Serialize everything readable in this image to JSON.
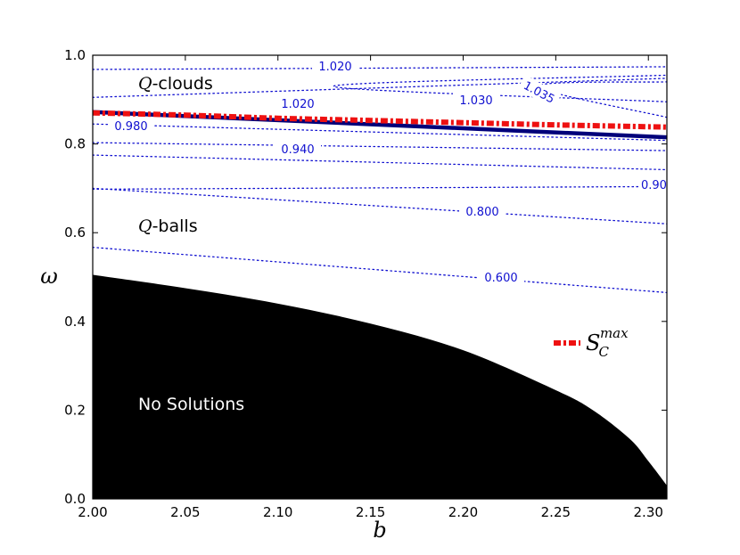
{
  "chart_data": {
    "type": "line",
    "title": "",
    "xlabel": "b",
    "ylabel": "ω",
    "xlim": [
      2.0,
      2.31
    ],
    "ylim": [
      0.0,
      1.0
    ],
    "x_ticks": [
      2.0,
      2.05,
      2.1,
      2.15,
      2.2,
      2.25,
      2.3
    ],
    "x_tick_labels": [
      "2.00",
      "2.05",
      "2.10",
      "2.15",
      "2.20",
      "2.25",
      "2.30"
    ],
    "y_ticks": [
      0.0,
      0.2,
      0.4,
      0.6,
      0.8,
      1.0
    ],
    "y_tick_labels": [
      "0.0",
      "0.2",
      "0.4",
      "0.6",
      "0.8",
      "1.0"
    ],
    "grid": false,
    "no_solution_boundary": {
      "x": [
        2.0,
        2.05,
        2.1,
        2.15,
        2.2,
        2.25,
        2.27,
        2.29,
        2.3,
        2.31
      ],
      "y": [
        0.505,
        0.475,
        0.44,
        0.395,
        0.335,
        0.245,
        0.2,
        0.135,
        0.085,
        0.03
      ]
    },
    "region_fill_color": "#000000",
    "boundary_curve": {
      "x": [
        2.0,
        2.31
      ],
      "y": [
        0.872,
        0.815
      ],
      "color": "#00007a"
    },
    "series": [
      {
        "name": "S_C^max",
        "x": [
          2.0,
          2.05,
          2.1,
          2.15,
          2.2,
          2.25,
          2.31
        ],
        "y": [
          0.87,
          0.865,
          0.858,
          0.853,
          0.848,
          0.843,
          0.838
        ],
        "color": "#ee1111"
      }
    ],
    "contours": [
      {
        "level": "1.020",
        "x": [
          2.0,
          2.31
        ],
        "y": [
          0.968,
          0.974
        ]
      },
      {
        "level": "1.020",
        "x": [
          2.0,
          2.31
        ],
        "y": [
          0.905,
          0.948
        ]
      },
      {
        "level": "1.030",
        "x": [
          2.31,
          2.13,
          2.31
        ],
        "y": [
          0.895,
          0.93,
          0.955
        ]
      },
      {
        "level": "1.035",
        "x": [
          2.31,
          2.24,
          2.31
        ],
        "y": [
          0.86,
          0.93,
          0.94
        ]
      },
      {
        "level": "0.980",
        "x": [
          2.0,
          2.31
        ],
        "y": [
          0.845,
          0.808
        ]
      },
      {
        "level": "0.940",
        "x": [
          2.0,
          2.31
        ],
        "y": [
          0.803,
          0.785
        ]
      },
      {
        "level": "",
        "x": [
          2.0,
          2.31
        ],
        "y": [
          0.775,
          0.742
        ]
      },
      {
        "level": "0.90",
        "x": [
          2.0,
          2.31
        ],
        "y": [
          0.698,
          0.704
        ]
      },
      {
        "level": "0.800",
        "x": [
          2.0,
          2.31
        ],
        "y": [
          0.7,
          0.62
        ]
      },
      {
        "level": "0.600",
        "x": [
          2.0,
          2.31
        ],
        "y": [
          0.567,
          0.465
        ]
      }
    ],
    "contour_color": "#1010d0",
    "annotations": [
      {
        "text_math": "Q",
        "text": "-clouds"
      },
      {
        "text_math": "Q",
        "text": "-balls"
      },
      {
        "text": "No Solutions"
      }
    ],
    "legend": {
      "placement": "inside-right",
      "entries": [
        {
          "base": "S",
          "sub": "C",
          "sup": "max"
        }
      ]
    }
  }
}
